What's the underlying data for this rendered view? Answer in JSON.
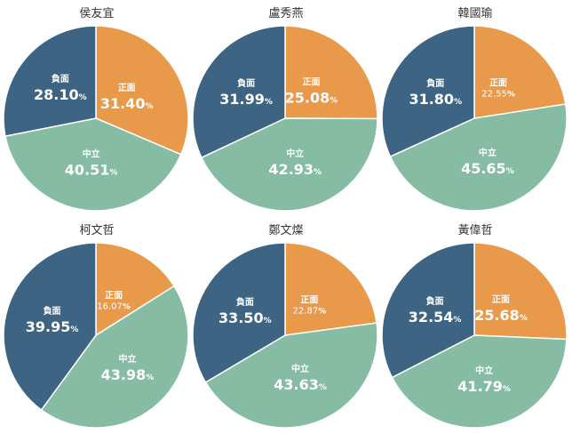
{
  "colors": {
    "positive": "#e8994a",
    "neutral": "#85bca3",
    "negative": "#3d6482"
  },
  "chart_data": [
    {
      "type": "pie",
      "title": "侯友宜",
      "slices": [
        {
          "label": "正面",
          "value": 31.4,
          "value_text": "31.40",
          "pct": "%",
          "color": "#e8994a"
        },
        {
          "label": "中立",
          "value": 40.51,
          "value_text": "40.51",
          "pct": "%",
          "color": "#85bca3"
        },
        {
          "label": "負面",
          "value": 28.1,
          "value_text": "28.10",
          "pct": "%",
          "color": "#3d6482"
        }
      ]
    },
    {
      "type": "pie",
      "title": "盧秀燕",
      "slices": [
        {
          "label": "正面",
          "value": 25.08,
          "value_text": "25.08",
          "pct": "%",
          "color": "#e8994a"
        },
        {
          "label": "中立",
          "value": 42.93,
          "value_text": "42.93",
          "pct": "%",
          "color": "#85bca3"
        },
        {
          "label": "負面",
          "value": 31.99,
          "value_text": "31.99",
          "pct": "%",
          "color": "#3d6482"
        }
      ]
    },
    {
      "type": "pie",
      "title": "韓國瑜",
      "slices": [
        {
          "label": "正面",
          "value": 22.55,
          "value_text": "22.55",
          "pct": "%",
          "color": "#e8994a"
        },
        {
          "label": "中立",
          "value": 45.65,
          "value_text": "45.65",
          "pct": "%",
          "color": "#85bca3"
        },
        {
          "label": "負面",
          "value": 31.8,
          "value_text": "31.80",
          "pct": "%",
          "color": "#3d6482"
        }
      ]
    },
    {
      "type": "pie",
      "title": "柯文哲",
      "slices": [
        {
          "label": "正面",
          "value": 16.07,
          "value_text": "16.07",
          "pct": "%",
          "color": "#e8994a"
        },
        {
          "label": "中立",
          "value": 43.98,
          "value_text": "43.98",
          "pct": "%",
          "color": "#85bca3"
        },
        {
          "label": "負面",
          "value": 39.95,
          "value_text": "39.95",
          "pct": "%",
          "color": "#3d6482"
        }
      ]
    },
    {
      "type": "pie",
      "title": "鄭文燦",
      "slices": [
        {
          "label": "正面",
          "value": 22.87,
          "value_text": "22.87",
          "pct": "%",
          "color": "#e8994a"
        },
        {
          "label": "中立",
          "value": 43.63,
          "value_text": "43.63",
          "pct": "%",
          "color": "#85bca3"
        },
        {
          "label": "負面",
          "value": 33.5,
          "value_text": "33.50",
          "pct": "%",
          "color": "#3d6482"
        }
      ]
    },
    {
      "type": "pie",
      "title": "黃偉哲",
      "slices": [
        {
          "label": "正面",
          "value": 25.68,
          "value_text": "25.68",
          "pct": "%",
          "color": "#e8994a"
        },
        {
          "label": "中立",
          "value": 41.79,
          "value_text": "41.79",
          "pct": "%",
          "color": "#85bca3"
        },
        {
          "label": "負面",
          "value": 32.54,
          "value_text": "32.54",
          "pct": "%",
          "color": "#3d6482"
        }
      ]
    }
  ]
}
